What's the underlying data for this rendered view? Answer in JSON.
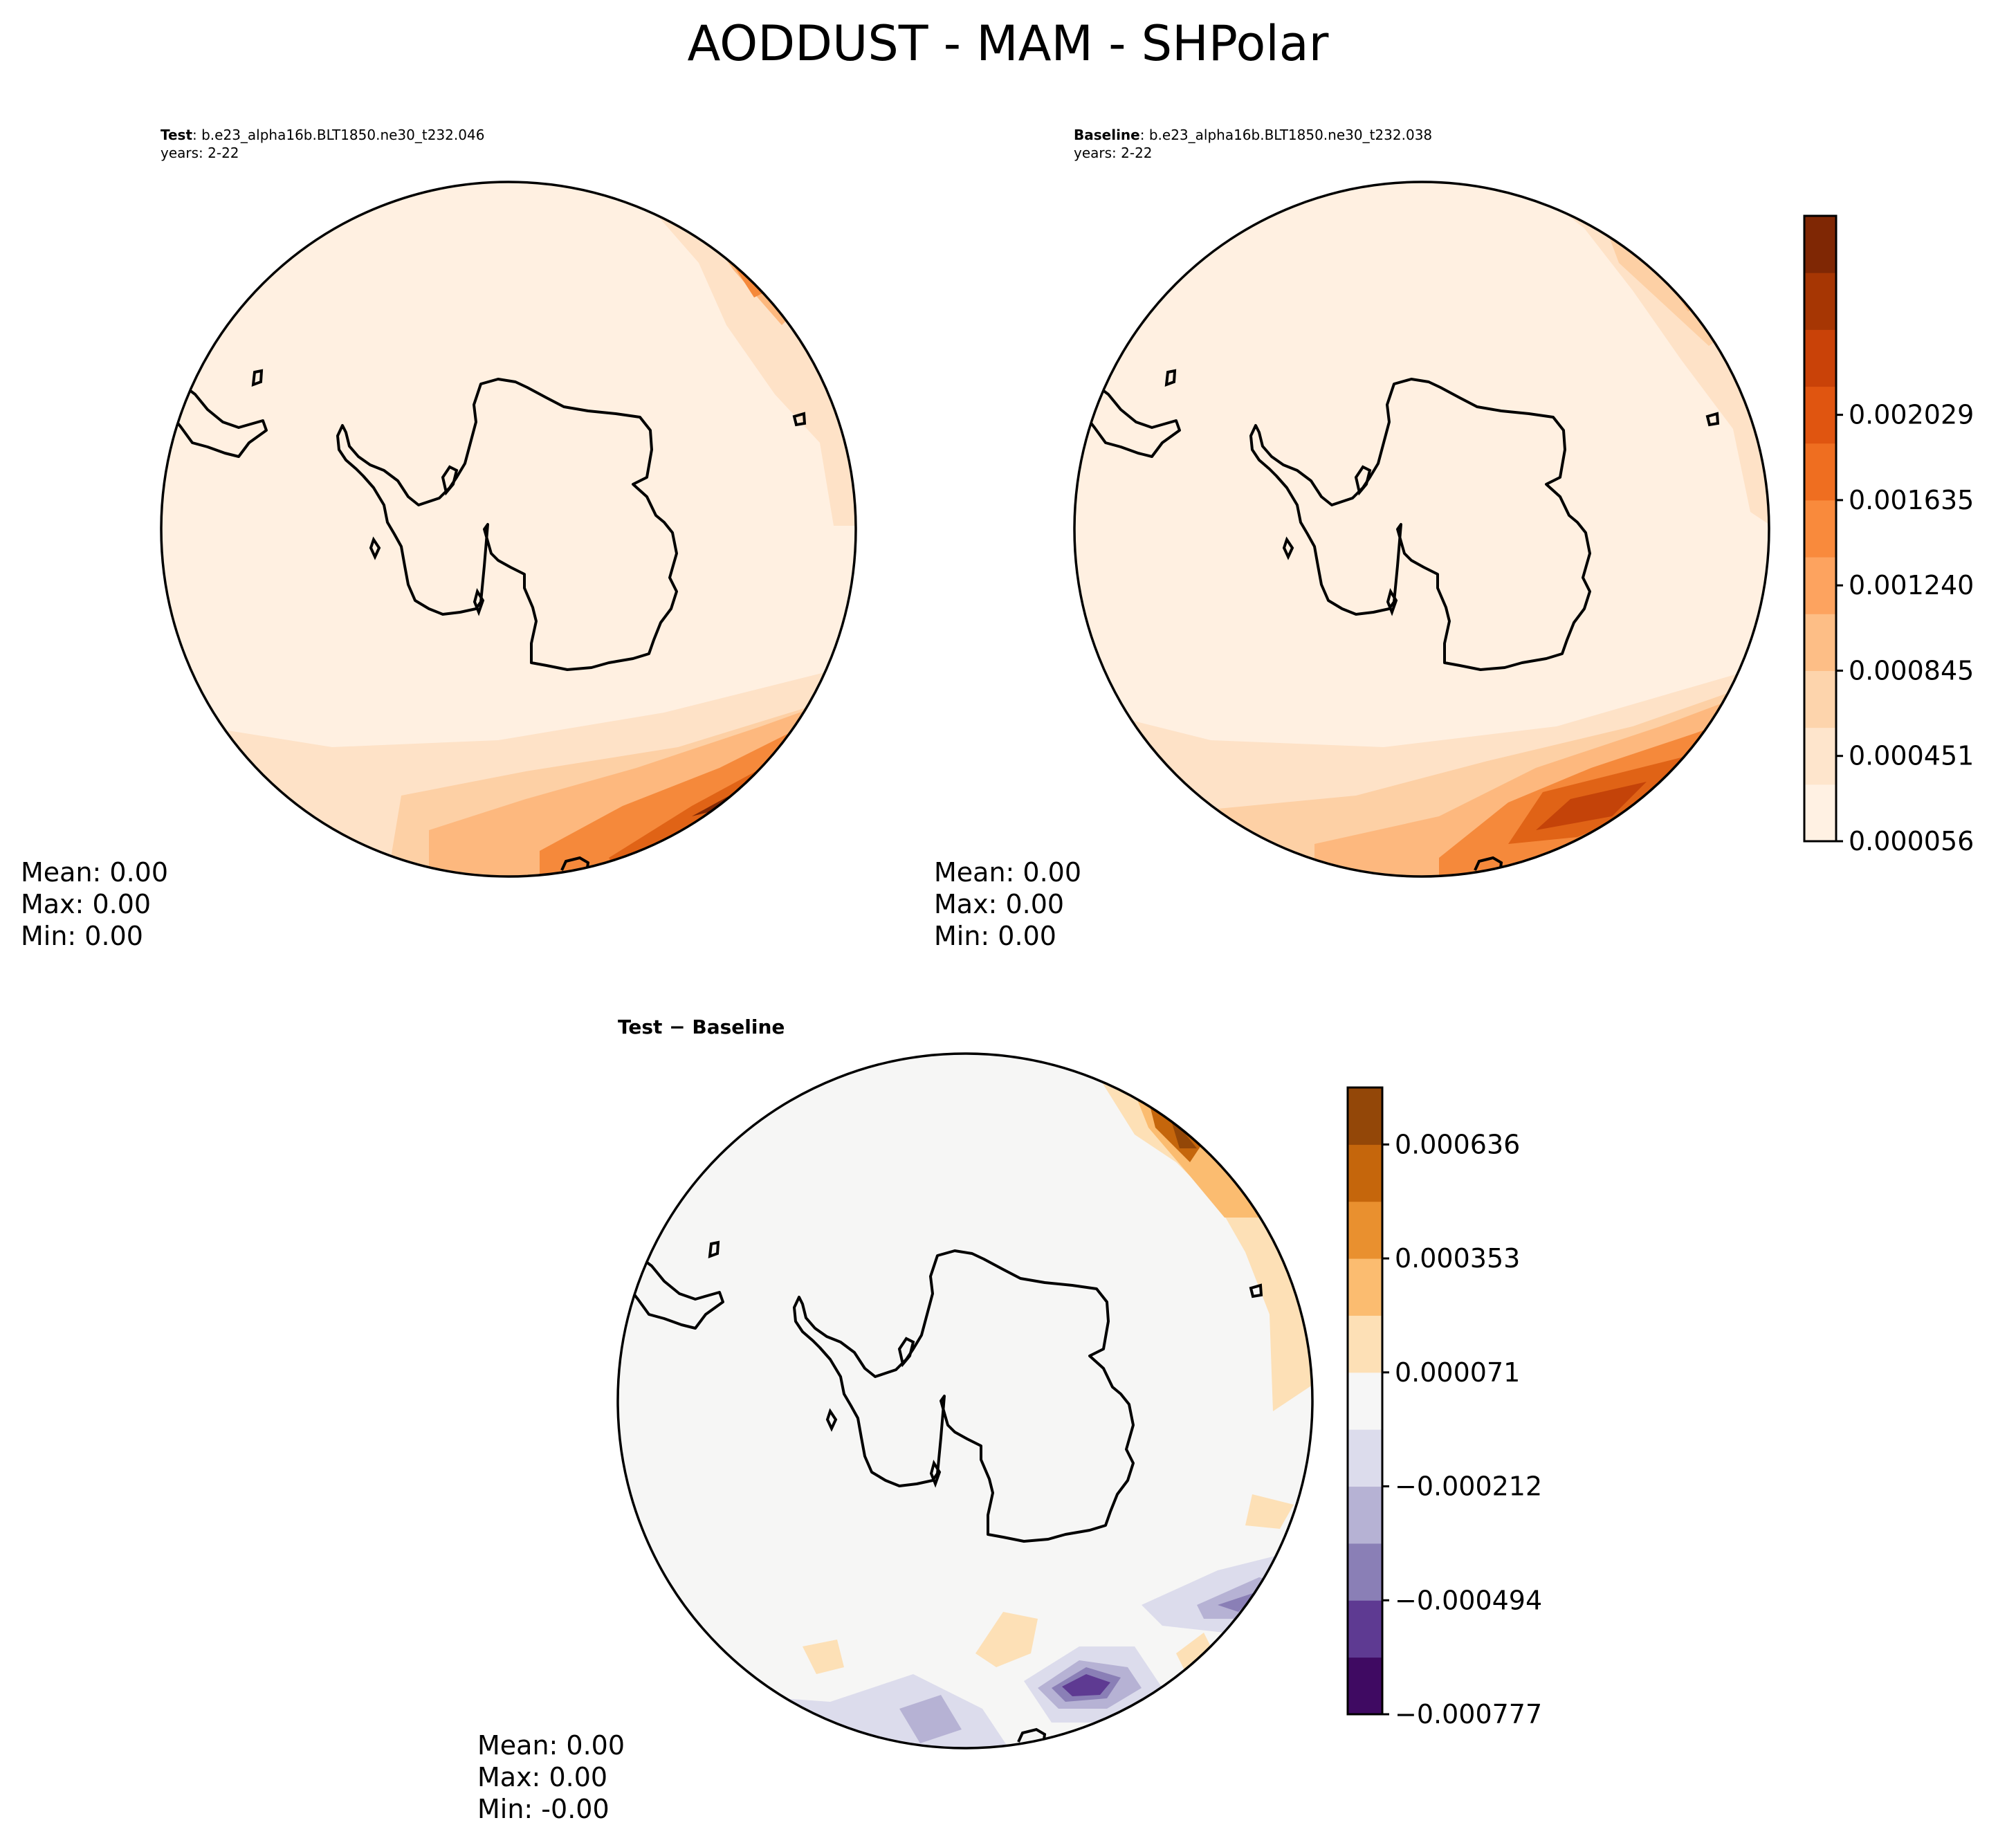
{
  "figure": {
    "title": "AODDUST - MAM - SHPolar"
  },
  "panels": {
    "test": {
      "label": "Test",
      "case": ": b.e23_alpha16b.BLT1850.ne30_t232.046",
      "years": "years: 2-22",
      "stats": {
        "mean": "Mean:  0.00",
        "max": "Max:  0.00",
        "min": "Min:  0.00"
      }
    },
    "baseline": {
      "label": "Baseline",
      "case": ": b.e23_alpha16b.BLT1850.ne30_t232.038",
      "years": "years: 2-22",
      "stats": {
        "mean": "Mean:  0.00",
        "max": "Max:  0.00",
        "min": "Min:  0.00"
      }
    },
    "difference": {
      "title": "Test − Baseline",
      "stats": {
        "mean": "Mean:  0.00",
        "max": "Max:  0.00",
        "min": "Min: -0.00"
      }
    }
  },
  "colorbars": {
    "main": {
      "ticks": [
        "0.000056",
        "0.000451",
        "0.000845",
        "0.001240",
        "0.001635",
        "0.002029"
      ],
      "colors": [
        "#fff1e3",
        "#fee5cc",
        "#fdd4ac",
        "#fdbe86",
        "#fda35f",
        "#f98a3c",
        "#ef6e20",
        "#e05510",
        "#c94208",
        "#a63603",
        "#7f2704"
      ]
    },
    "diff": {
      "ticks": [
        "−0.000777",
        "−0.000494",
        "−0.000212",
        "0.000071",
        "0.000353",
        "0.000636"
      ],
      "colors": [
        "#3f0a62",
        "#5e3a92",
        "#8a7fb6",
        "#b6b2d4",
        "#dcdcec",
        "#f6f6f6",
        "#fde0b6",
        "#fbbc70",
        "#e9902f",
        "#c5660c",
        "#934708"
      ]
    }
  },
  "map": {
    "projection": "south-polar stereographic",
    "region": "SHPolar",
    "background_color": "#fff0e1",
    "diff_background_color": "#f6f6f5"
  }
}
